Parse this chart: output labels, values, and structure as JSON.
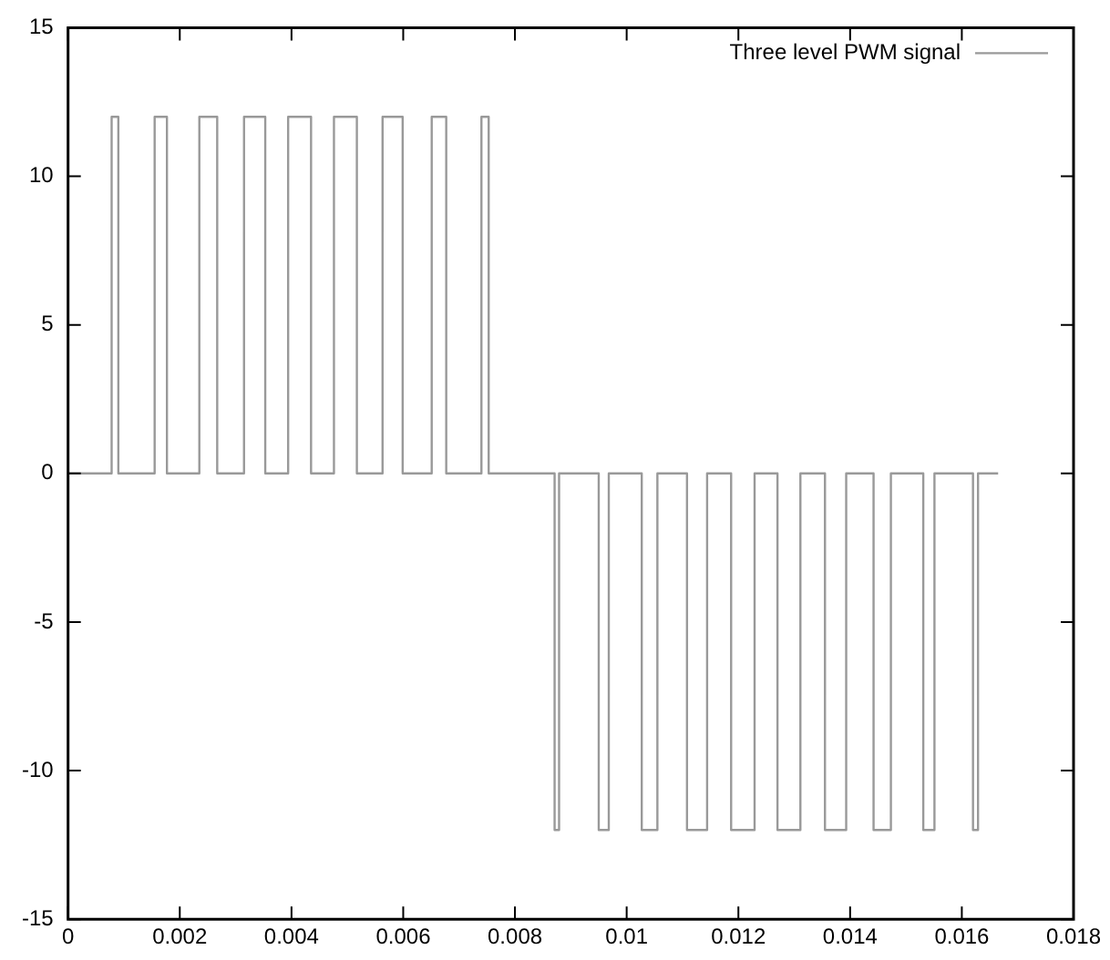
{
  "chart_data": {
    "type": "step",
    "legend": "top right",
    "xlim": [
      0,
      0.018
    ],
    "xticks": [
      0,
      0.002,
      0.004,
      0.006,
      0.008,
      0.01,
      0.012,
      0.014,
      0.016,
      0.018
    ],
    "ylim": [
      -15,
      15
    ],
    "yticks": [
      -15,
      -10,
      -5,
      0,
      5,
      10,
      15
    ],
    "grid": false,
    "series": [
      {
        "name": "Three level PWM signal",
        "color": "#999999",
        "x": [
          0,
          0.00078,
          0.0009,
          0.00155,
          0.00177,
          0.00235,
          0.00267,
          0.00315,
          0.00353,
          0.00394,
          0.00435,
          0.00476,
          0.00517,
          0.00563,
          0.00599,
          0.00651,
          0.00677,
          0.0074,
          0.00753,
          0.00871,
          0.00879,
          0.0095,
          0.00968,
          0.01027,
          0.01055,
          0.01108,
          0.01144,
          0.01187,
          0.01229,
          0.0127,
          0.01311,
          0.01355,
          0.01393,
          0.01442,
          0.01473,
          0.01531,
          0.01551,
          0.0162,
          0.01629,
          0.01665
        ],
        "values": [
          0,
          12,
          0,
          12,
          0,
          12,
          0,
          12,
          0,
          12,
          0,
          12,
          0,
          12,
          0,
          12,
          0,
          12,
          0,
          -12,
          0,
          -12,
          0,
          -12,
          0,
          -12,
          0,
          -12,
          0,
          -12,
          0,
          -12,
          0,
          -12,
          0,
          -12,
          0,
          -12,
          0,
          0
        ]
      }
    ]
  }
}
